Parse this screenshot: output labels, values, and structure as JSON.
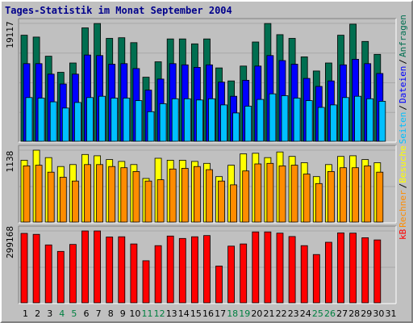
{
  "chart_data": {
    "type": "bar",
    "title": "Tages-Statistik im Monat September 2004",
    "categories": [
      "1",
      "2",
      "3",
      "4",
      "5",
      "6",
      "7",
      "8",
      "9",
      "10",
      "11",
      "12",
      "13",
      "14",
      "15",
      "16",
      "17",
      "18",
      "19",
      "20",
      "21",
      "22",
      "23",
      "24",
      "25",
      "26",
      "27",
      "28",
      "29",
      "30",
      "31"
    ],
    "weekend_days": [
      "4",
      "5",
      "11",
      "12",
      "18",
      "19",
      "25",
      "26"
    ],
    "background_color": "#c0c0c0",
    "panels": [
      {
        "name": "top",
        "ymax_label": "19117",
        "ymax": 19117,
        "series": [
          {
            "name": "Anfragen",
            "color": "#006e50",
            "values": [
              17200,
              16900,
              13800,
              11200,
              12700,
              18400,
              19100,
              16700,
              16800,
              16000,
              10400,
              12900,
              16600,
              16600,
              15800,
              16600,
              11900,
              9800,
              12200,
              16100,
              19100,
              17300,
              16700,
              13700,
              11400,
              12700,
              17200,
              19000,
              16200,
              14100,
              0
            ]
          },
          {
            "name": "Dateien",
            "color": "#0000ff",
            "values": [
              12600,
              12600,
              10900,
              9300,
              10900,
              14000,
              13900,
              12500,
              12600,
              11800,
              8300,
              10100,
              12600,
              12400,
              12000,
              12400,
              9600,
              7300,
              9900,
              12200,
              13900,
              13100,
              12500,
              10200,
              8900,
              9800,
              12400,
              13300,
              12600,
              11000,
              0
            ]
          },
          {
            "name": "Seiten",
            "color": "#00c0ff",
            "values": [
              7100,
              7000,
              6400,
              5400,
              6300,
              7100,
              7300,
              7000,
              7000,
              6600,
              4800,
              6100,
              6900,
              6900,
              6700,
              6900,
              5900,
              4600,
              5700,
              6800,
              7700,
              7400,
              7000,
              6600,
              5500,
              5900,
              7100,
              7300,
              6900,
              6500,
              0
            ]
          }
        ]
      },
      {
        "name": "middle",
        "ymax_label": "1138",
        "ymax": 1138,
        "series": [
          {
            "name": "Besuche",
            "color": "#ffff00",
            "values": [
              980,
              1138,
              1020,
              880,
              910,
              1070,
              1050,
              990,
              960,
              910,
              690,
              1010,
              980,
              980,
              960,
              930,
              720,
              900,
              1080,
              1090,
              1020,
              1110,
              1040,
              940,
              720,
              910,
              1040,
              1050,
              990,
              940,
              0
            ]
          },
          {
            "name": "Rechner",
            "color": "#ff8c00",
            "values": [
              890,
              900,
              790,
              710,
              650,
              910,
              910,
              880,
              860,
              800,
              650,
              670,
              840,
              850,
              880,
              830,
              650,
              590,
              810,
              920,
              930,
              890,
              900,
              760,
              610,
              800,
              860,
              860,
              890,
              790,
              0
            ]
          }
        ]
      },
      {
        "name": "bottom",
        "ymax_label": "299168",
        "ymax": 299168,
        "series": [
          {
            "name": "kB",
            "color": "#ff0000",
            "values": [
              289000,
              285000,
              241000,
              214000,
              243000,
              299168,
              299168,
              274000,
              275000,
              245000,
              175000,
              238000,
              278000,
              268000,
              275000,
              280000,
              153000,
              236000,
              245000,
              295000,
              295000,
              290000,
              276000,
              238000,
              201000,
              252000,
              291000,
              290000,
              271000,
              262000,
              0
            ]
          }
        ]
      }
    ],
    "legend": [
      {
        "text": "Anfragen",
        "color": "#006e50",
        "panel": "top"
      },
      {
        "text": "/",
        "color": "#000000",
        "panel": "top"
      },
      {
        "text": "Dateien",
        "color": "#0000ff",
        "panel": "top"
      },
      {
        "text": "/",
        "color": "#000000",
        "panel": "top"
      },
      {
        "text": "Seiten",
        "color": "#00c0ff",
        "panel": "top"
      },
      {
        "text": "/",
        "color": "#000000",
        "panel": "middle"
      },
      {
        "text": "Besuche",
        "color": "#ffff00",
        "panel": "middle"
      },
      {
        "text": "/",
        "color": "#000000",
        "panel": "middle"
      },
      {
        "text": "Rechner",
        "color": "#ff8c00",
        "panel": "middle"
      },
      {
        "text": "kB",
        "color": "#ff0000",
        "panel": "bottom"
      }
    ],
    "weekday_label_color": "#000000",
    "weekend_label_color": "#008040"
  }
}
